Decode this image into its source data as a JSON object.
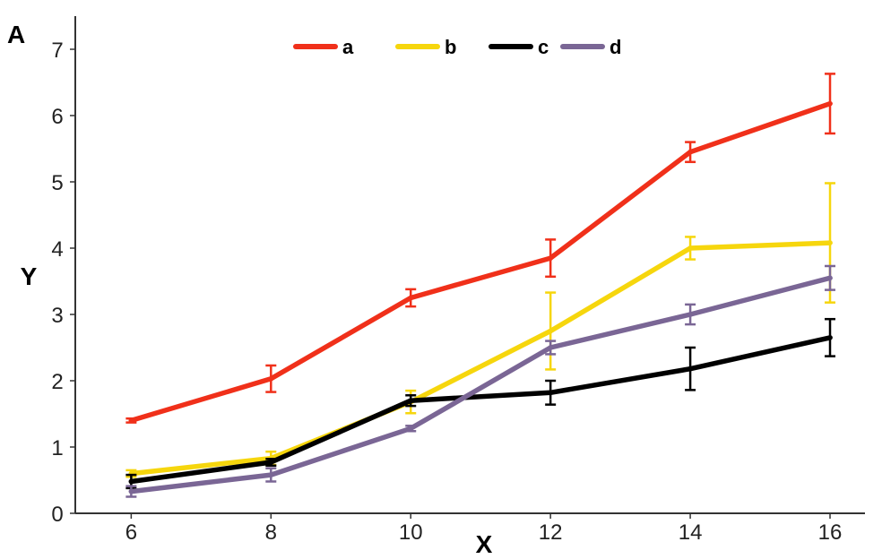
{
  "chart_data": {
    "type": "line",
    "panel_label": "A",
    "title": "",
    "xlabel": "X",
    "ylabel": "Y",
    "x": [
      6,
      8,
      10,
      12,
      14,
      16
    ],
    "xticks": [
      "6",
      "8",
      "10",
      "12",
      "14",
      "16"
    ],
    "yticks": [
      "0",
      "1",
      "2",
      "3",
      "4",
      "5",
      "6",
      "7"
    ],
    "xlim": [
      5.2,
      16.5
    ],
    "ylim": [
      0,
      7.5
    ],
    "grid": false,
    "legend_position": "top-center",
    "series": [
      {
        "name": "a",
        "color": "#f0301a",
        "values": [
          1.4,
          2.03,
          3.25,
          3.85,
          5.45,
          6.18
        ],
        "errors": [
          0.03,
          0.2,
          0.13,
          0.28,
          0.15,
          0.45
        ]
      },
      {
        "name": "b",
        "color": "#f6d60d",
        "values": [
          0.6,
          0.83,
          1.68,
          2.75,
          4.0,
          4.08
        ],
        "errors": [
          0.05,
          0.1,
          0.17,
          0.58,
          0.17,
          0.9
        ]
      },
      {
        "name": "c",
        "color": "#000000",
        "values": [
          0.48,
          0.77,
          1.7,
          1.82,
          2.18,
          2.65
        ],
        "errors": [
          0.1,
          0.05,
          0.08,
          0.18,
          0.32,
          0.28
        ]
      },
      {
        "name": "d",
        "color": "#7a6695",
        "values": [
          0.33,
          0.58,
          1.28,
          2.5,
          3.0,
          3.55
        ],
        "errors": [
          0.08,
          0.1,
          0.04,
          0.1,
          0.15,
          0.18
        ]
      }
    ]
  }
}
